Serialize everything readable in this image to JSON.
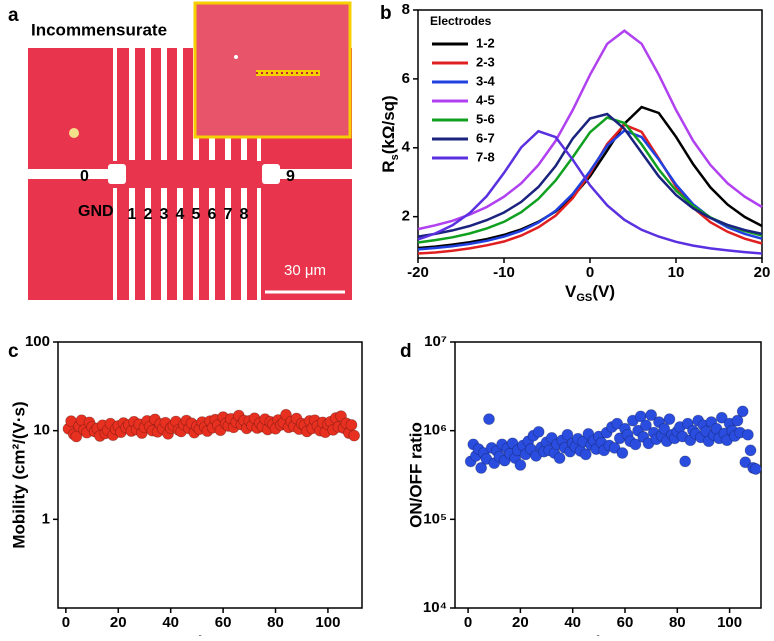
{
  "panel_labels": [
    "a",
    "b",
    "c",
    "d"
  ],
  "image": {
    "title": "Incommensurate",
    "left_label": "0",
    "right_label": "9",
    "ground_label": "GND",
    "electrode_labels": [
      "1",
      "2",
      "3",
      "4",
      "5",
      "6",
      "7",
      "8"
    ],
    "scale_bar": "30 μm"
  },
  "chart_data": [
    {
      "type": "line",
      "x_label": [
        "V",
        "GS",
        "(V)"
      ],
      "y_label": [
        "R",
        "s",
        "(kΩ/sq)"
      ],
      "legend": "upper left",
      "legend_title": "Electrodes",
      "grid": false,
      "xlim": [
        -20,
        20
      ],
      "xticks": [
        -20,
        -10,
        0,
        10,
        20
      ],
      "ylim": [
        0.8,
        8
      ],
      "yticks": [
        2,
        4,
        6,
        8
      ],
      "x": [
        -20,
        -18,
        -16,
        -14,
        -12,
        -10,
        -8,
        -6,
        -4,
        -2,
        0,
        2,
        4,
        6,
        8,
        10,
        12,
        14,
        16,
        18,
        20
      ],
      "series": [
        {
          "name": "1-2",
          "color": "#000000",
          "values": [
            1.09,
            1.13,
            1.19,
            1.26,
            1.35,
            1.47,
            1.63,
            1.85,
            2.15,
            2.58,
            3.17,
            3.92,
            4.7,
            5.18,
            5.01,
            4.32,
            3.52,
            2.85,
            2.35,
            1.99,
            1.73
          ]
        },
        {
          "name": "2-3",
          "color": "#e02020",
          "values": [
            0.93,
            0.96,
            1.01,
            1.08,
            1.17,
            1.28,
            1.45,
            1.69,
            2.03,
            2.54,
            3.26,
            4.11,
            4.67,
            4.46,
            3.69,
            2.87,
            2.26,
            1.84,
            1.56,
            1.36,
            1.22
          ]
        },
        {
          "name": "3-4",
          "color": "#2040e0",
          "values": [
            1.05,
            1.09,
            1.14,
            1.21,
            1.3,
            1.42,
            1.59,
            1.83,
            2.17,
            2.66,
            3.32,
            4.06,
            4.5,
            4.31,
            3.66,
            2.93,
            2.36,
            1.97,
            1.69,
            1.5,
            1.36
          ]
        },
        {
          "name": "4-5",
          "color": "#b040f0",
          "values": [
            1.64,
            1.75,
            1.88,
            2.06,
            2.28,
            2.58,
            2.97,
            3.5,
            4.2,
            5.1,
            6.12,
            7.02,
            7.4,
            7.02,
            6.12,
            5.1,
            4.2,
            3.5,
            2.97,
            2.58,
            2.28
          ]
        },
        {
          "name": "5-6",
          "color": "#10a020",
          "values": [
            1.25,
            1.32,
            1.4,
            1.51,
            1.66,
            1.85,
            2.13,
            2.52,
            3.05,
            3.73,
            4.45,
            4.88,
            4.72,
            4.1,
            3.37,
            2.76,
            2.31,
            1.98,
            1.75,
            1.58,
            1.45
          ]
        },
        {
          "name": "6-7",
          "color": "#1a237e",
          "values": [
            1.42,
            1.5,
            1.6,
            1.73,
            1.9,
            2.12,
            2.43,
            2.86,
            3.47,
            4.27,
            4.85,
            4.98,
            4.55,
            3.86,
            3.17,
            2.63,
            2.24,
            1.96,
            1.76,
            1.61,
            1.5
          ]
        },
        {
          "name": "7-8",
          "color": "#5a30e0",
          "values": [
            1.34,
            1.51,
            1.75,
            2.1,
            2.6,
            3.27,
            4.01,
            4.48,
            4.31,
            3.65,
            2.91,
            2.33,
            1.91,
            1.62,
            1.42,
            1.27,
            1.16,
            1.08,
            1.02,
            0.97,
            0.93
          ]
        }
      ]
    },
    {
      "type": "scatter",
      "x_label": "Device No.",
      "y_label": "Mobility (cm²/(V·s)",
      "yscale": "log",
      "color": "#e83020",
      "xlim": [
        -3,
        113
      ],
      "xticks": [
        0,
        20,
        40,
        60,
        80,
        100
      ],
      "ylim": [
        0.1,
        100
      ],
      "yticks": [
        1,
        10,
        100
      ],
      "x": [
        1,
        2,
        3,
        4,
        5,
        6,
        7,
        8,
        9,
        10,
        11,
        12,
        13,
        14,
        15,
        16,
        17,
        18,
        19,
        20,
        21,
        22,
        23,
        24,
        25,
        26,
        27,
        28,
        29,
        30,
        31,
        32,
        33,
        34,
        35,
        36,
        37,
        38,
        39,
        40,
        41,
        42,
        43,
        44,
        45,
        46,
        47,
        48,
        49,
        50,
        51,
        52,
        53,
        54,
        55,
        56,
        57,
        58,
        59,
        60,
        61,
        62,
        63,
        64,
        65,
        66,
        67,
        68,
        69,
        70,
        71,
        72,
        73,
        74,
        75,
        76,
        77,
        78,
        79,
        80,
        81,
        82,
        83,
        84,
        85,
        86,
        87,
        88,
        89,
        90,
        91,
        92,
        93,
        94,
        95,
        96,
        97,
        98,
        99,
        100,
        101,
        102,
        103,
        104,
        105,
        106,
        107,
        108,
        109,
        110
      ],
      "values": [
        10.5,
        12.8,
        9.1,
        8.6,
        11.2,
        13.1,
        10.2,
        9.5,
        12.4,
        11.0,
        9.8,
        10.6,
        8.7,
        11.5,
        9.3,
        10.1,
        12.0,
        8.9,
        10.4,
        11.3,
        9.6,
        12.2,
        10.8,
        11.6,
        9.9,
        12.6,
        10.3,
        11.8,
        9.4,
        10.9,
        12.9,
        11.1,
        10.0,
        13.4,
        9.7,
        11.9,
        10.5,
        12.3,
        9.2,
        10.7,
        11.4,
        12.7,
        10.2,
        9.8,
        11.7,
        13.0,
        10.6,
        12.1,
        9.5,
        11.2,
        10.4,
        12.5,
        11.0,
        9.9,
        12.8,
        10.8,
        13.3,
        11.5,
        10.1,
        14.2,
        12.0,
        11.3,
        13.6,
        10.9,
        12.4,
        14.8,
        11.7,
        13.0,
        10.6,
        12.9,
        11.4,
        13.8,
        10.7,
        12.2,
        11.1,
        13.5,
        10.3,
        12.6,
        11.8,
        10.5,
        13.2,
        11.6,
        12.3,
        15.1,
        10.9,
        12.7,
        11.2,
        13.7,
        10.4,
        12.0,
        11.5,
        9.8,
        12.9,
        10.6,
        13.1,
        11.3,
        10.0,
        12.4,
        9.6,
        11.8,
        12.6,
        10.2,
        13.9,
        11.0,
        14.6,
        10.7,
        12.1,
        9.4,
        11.6,
        8.8
      ]
    },
    {
      "type": "scatter",
      "x_label": "Device No.",
      "y_label": "ON/OFF ratio",
      "yscale": "log",
      "color": "#2a4de0",
      "xlim": [
        -5,
        112
      ],
      "xticks": [
        0,
        20,
        40,
        60,
        80,
        100
      ],
      "ylim": [
        10000,
        10000000
      ],
      "yticks": [
        {
          "value": 10000,
          "label": "10⁴"
        },
        {
          "value": 100000,
          "label": "10⁵"
        },
        {
          "value": 1000000,
          "label": "10⁶"
        },
        {
          "value": 10000000,
          "label": "10⁷"
        }
      ],
      "x": [
        1,
        2,
        3,
        4,
        5,
        6,
        7,
        8,
        9,
        10,
        11,
        12,
        13,
        14,
        15,
        16,
        17,
        18,
        19,
        20,
        21,
        22,
        23,
        24,
        25,
        26,
        27,
        28,
        29,
        30,
        31,
        32,
        33,
        34,
        35,
        36,
        37,
        38,
        39,
        40,
        41,
        42,
        43,
        44,
        45,
        46,
        47,
        48,
        49,
        50,
        51,
        52,
        53,
        54,
        55,
        56,
        57,
        58,
        59,
        60,
        61,
        62,
        63,
        64,
        65,
        66,
        67,
        68,
        69,
        70,
        71,
        72,
        73,
        74,
        75,
        76,
        77,
        78,
        79,
        80,
        81,
        82,
        83,
        84,
        85,
        86,
        87,
        88,
        89,
        90,
        91,
        92,
        93,
        94,
        95,
        96,
        97,
        98,
        99,
        100,
        101,
        102,
        103,
        104,
        105,
        106,
        107,
        108,
        109,
        110
      ],
      "values": [
        450000,
        700000,
        520000,
        620000,
        380000,
        560000,
        480000,
        1350000,
        640000,
        430000,
        590000,
        510000,
        700000,
        460000,
        630000,
        550000,
        720000,
        490000,
        600000,
        410000,
        680000,
        540000,
        760000,
        620000,
        880000,
        520000,
        970000,
        650000,
        580000,
        740000,
        600000,
        830000,
        560000,
        700000,
        490000,
        780000,
        640000,
        900000,
        580000,
        720000,
        660000,
        810000,
        590000,
        750000,
        540000,
        920000,
        690000,
        770000,
        620000,
        860000,
        730000,
        600000,
        950000,
        680000,
        1100000,
        640000,
        1200000,
        820000,
        560000,
        1050000,
        900000,
        760000,
        1300000,
        700000,
        1000000,
        1450000,
        850000,
        1150000,
        720000,
        1500000,
        950000,
        800000,
        1250000,
        880000,
        1050000,
        760000,
        1350000,
        900000,
        820000,
        980000,
        1100000,
        860000,
        450000,
        1200000,
        780000,
        1000000,
        920000,
        1300000,
        840000,
        1150000,
        980000,
        760000,
        1250000,
        890000,
        1050000,
        820000,
        1400000,
        930000,
        780000,
        1200000,
        1000000,
        870000,
        1300000,
        950000,
        1650000,
        440000,
        900000,
        600000,
        380000,
        370000
      ]
    }
  ]
}
